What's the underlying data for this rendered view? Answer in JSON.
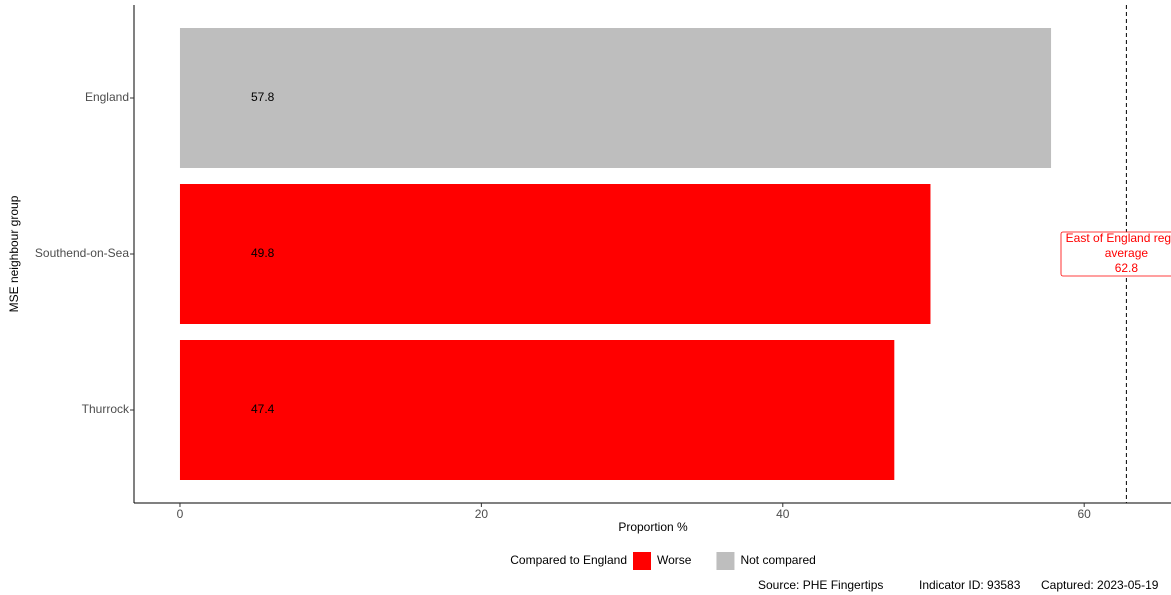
{
  "chart_data": {
    "type": "barh",
    "y_label": "MSE neighbour group",
    "x_label": "Proportion %",
    "categories": [
      "England",
      "Southend-on-Sea",
      "Thurrock"
    ],
    "values": [
      57.8,
      49.8,
      47.4
    ],
    "colors": [
      "#bebebe",
      "#ff0000",
      "#ff0000"
    ],
    "xlim": [
      -3.05,
      65.76
    ],
    "xticks": [
      0,
      20,
      40,
      60
    ],
    "grid": false,
    "reference_line": {
      "value": 62.8,
      "label": [
        "East of England region",
        "average"
      ],
      "color": "#ff0000"
    },
    "legend": {
      "title": "Compared to England",
      "position": "bottom",
      "items": [
        {
          "name": "Worse",
          "color": "#ff0000"
        },
        {
          "name": "Not compared",
          "color": "#bebebe"
        }
      ]
    },
    "footer": [
      "Source: PHE Fingertips",
      "Indicator ID: 93583",
      "Captured: 2023-05-19"
    ]
  }
}
